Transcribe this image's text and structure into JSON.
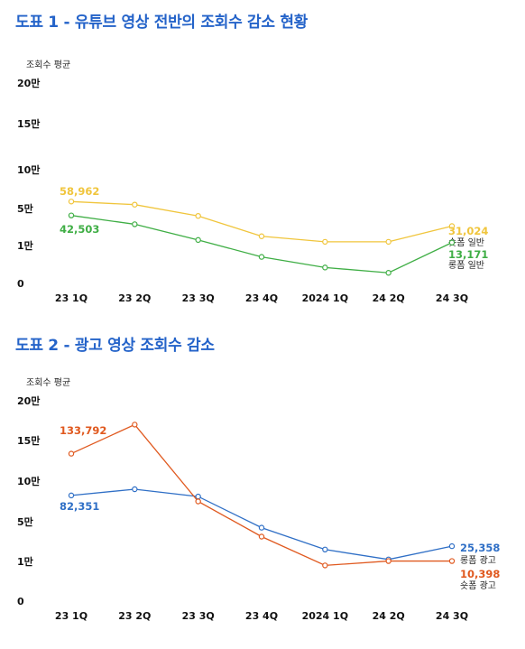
{
  "figures": [
    {
      "title": "도표 1 - 유튜브 영상 전반의 조회수 감소 현황"
    },
    {
      "title": "도표 2 - 광고 영상 조회수 감소"
    }
  ],
  "chart_data": [
    {
      "type": "line",
      "title": "도표 1 - 유튜브 영상 전반의 조회수 감소 현황",
      "ylabel": "조회수 평균",
      "xlabel": "",
      "categories": [
        "23 1Q",
        "23 2Q",
        "23 3Q",
        "23 4Q",
        "2024 1Q",
        "24 2Q",
        "24 3Q"
      ],
      "y_tick_labels": [
        "0",
        "1만",
        "5만",
        "10만",
        "15만",
        "20만"
      ],
      "y_scale": "non-linear (tick spacing equal between labeled values)",
      "grid": false,
      "series": [
        {
          "name": "숏폼 일반",
          "color": "#f0c53c",
          "values": [
            58962,
            55000,
            42000,
            20000,
            14000,
            14000,
            31024
          ],
          "first_label": "58,962",
          "last_label": "31,024"
        },
        {
          "name": "롱폼 일반",
          "color": "#3fae45",
          "values": [
            42503,
            33000,
            16000,
            7000,
            4200,
            2800,
            13171
          ],
          "first_label": "42,503",
          "last_label": "13,171"
        }
      ]
    },
    {
      "type": "line",
      "title": "도표 2 - 광고 영상 조회수 감소",
      "ylabel": "조회수 평균",
      "xlabel": "",
      "categories": [
        "23 1Q",
        "23 2Q",
        "23 3Q",
        "23 4Q",
        "2024 1Q",
        "24 2Q",
        "24 3Q"
      ],
      "y_tick_labels": [
        "0",
        "1만",
        "5만",
        "10만",
        "15만",
        "20만"
      ],
      "y_scale": "non-linear (tick spacing equal between labeled values)",
      "grid": false,
      "series": [
        {
          "name": "롱폼 광고",
          "color": "#2f6fc6",
          "values": [
            82351,
            90000,
            81000,
            44000,
            22000,
            12000,
            25358
          ],
          "first_label": "82,351",
          "last_label": "25,358"
        },
        {
          "name": "숏폼 광고",
          "color": "#e0591f",
          "values": [
            133792,
            170000,
            75000,
            35000,
            9000,
            10398,
            10398
          ],
          "first_label": "133,792",
          "last_label": "10,398"
        }
      ]
    }
  ]
}
